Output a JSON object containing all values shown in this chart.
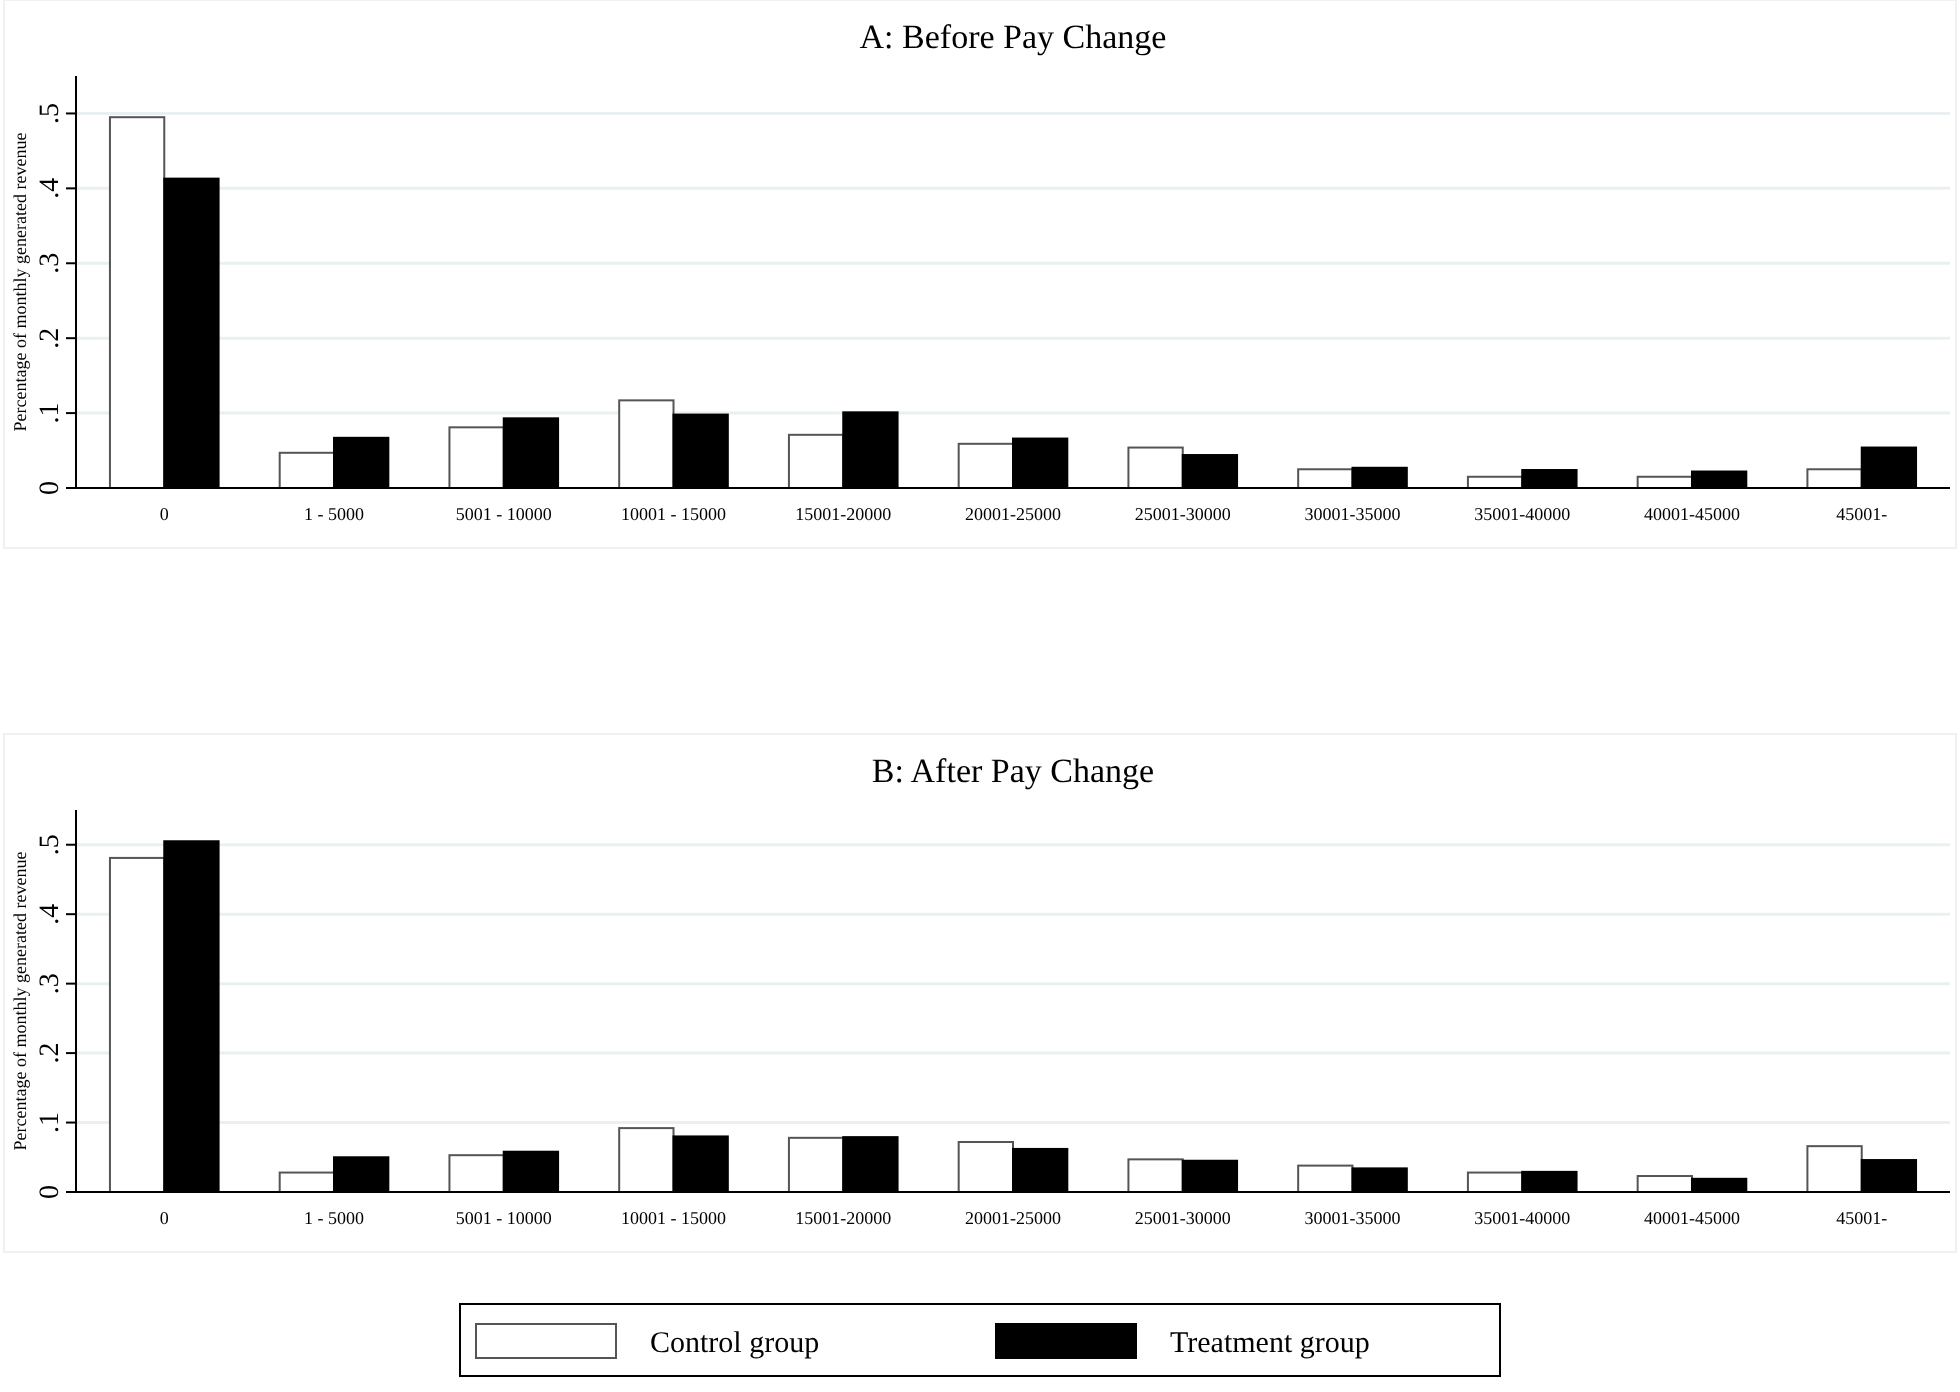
{
  "chart_data": [
    {
      "type": "bar",
      "title": "A: Before Pay Change",
      "ylabel": "Percentage of monthly generated revenue",
      "categories": [
        "0",
        "1 - 5000",
        "5001 - 10000",
        "10001 - 15000",
        "15001-20000",
        "20001-25000",
        "25001-30000",
        "30001-35000",
        "35001-40000",
        "40001-45000",
        "45001-"
      ],
      "series": [
        {
          "color": "#ffffff",
          "values": [
            0.495,
            0.047,
            0.081,
            0.117,
            0.071,
            0.059,
            0.054,
            0.025,
            0.015,
            0.015,
            0.025
          ]
        },
        {
          "color": "#000000",
          "values": [
            0.413,
            0.067,
            0.093,
            0.098,
            0.101,
            0.066,
            0.044,
            0.027,
            0.024,
            0.022,
            0.054
          ]
        }
      ],
      "ylim": [
        0,
        0.55
      ],
      "yticks": [
        0,
        {
          "value": 0.1,
          "label": ".1"
        },
        {
          "value": 0.2,
          "label": ".2"
        },
        {
          "value": 0.3,
          "label": ".3"
        },
        {
          "value": 0.4,
          "label": ".4"
        },
        {
          "value": 0.5,
          "label": ".5"
        }
      ],
      "grid": "y",
      "legend": false
    },
    {
      "type": "bar",
      "title": "B: After Pay Change",
      "ylabel": "Percentage of monthly generated revenue",
      "categories": [
        "0",
        "1 - 5000",
        "5001 - 10000",
        "10001 - 15000",
        "15001-20000",
        "20001-25000",
        "25001-30000",
        "30001-35000",
        "35001-40000",
        "40001-45000",
        "45001-"
      ],
      "series": [
        {
          "name": "Control group",
          "color": "#ffffff",
          "values": [
            0.481,
            0.028,
            0.053,
            0.092,
            0.078,
            0.072,
            0.047,
            0.038,
            0.028,
            0.023,
            0.066
          ]
        },
        {
          "name": "Treatment group",
          "color": "#000000",
          "values": [
            0.505,
            0.05,
            0.058,
            0.08,
            0.079,
            0.062,
            0.045,
            0.034,
            0.029,
            0.019,
            0.046
          ]
        }
      ],
      "ylim": [
        0,
        0.55
      ],
      "yticks": [
        0,
        {
          "value": 0.1,
          "label": ".1"
        },
        {
          "value": 0.2,
          "label": ".2"
        },
        {
          "value": 0.3,
          "label": ".3"
        },
        {
          "value": 0.4,
          "label": ".4"
        },
        {
          "value": 0.5,
          "label": ".5"
        }
      ],
      "grid": "y",
      "legend": "bottom"
    }
  ]
}
